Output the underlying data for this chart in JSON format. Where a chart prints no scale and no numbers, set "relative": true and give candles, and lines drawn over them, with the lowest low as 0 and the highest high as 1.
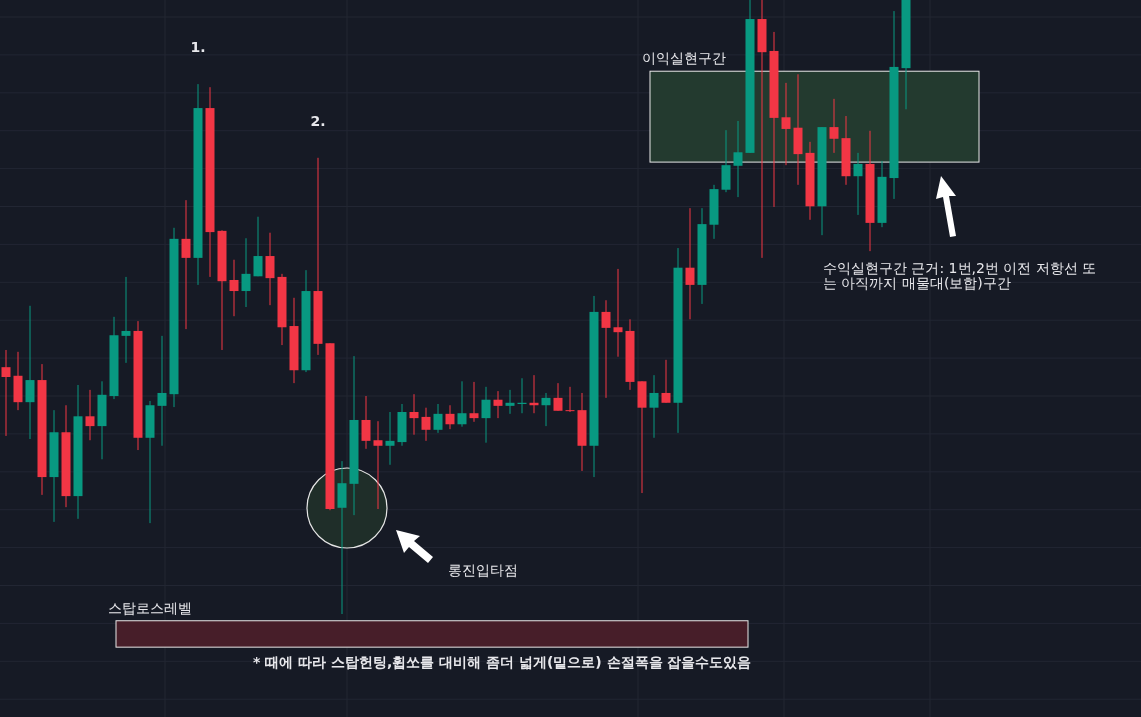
{
  "chart_data": {
    "type": "candlestick",
    "relative": true,
    "grid": true,
    "categories": [
      null,
      null,
      null,
      null,
      null,
      null,
      null,
      null,
      null,
      null,
      null,
      null,
      null,
      null,
      null,
      null,
      null,
      null,
      null,
      null,
      null,
      null,
      null,
      null,
      null,
      null,
      null,
      null,
      null,
      null,
      null,
      null,
      null,
      null,
      null,
      null,
      null,
      null,
      null,
      null,
      null,
      null,
      null,
      null,
      null,
      null,
      null,
      null,
      null,
      null,
      null,
      null,
      null,
      null,
      null,
      null,
      null,
      null,
      null,
      null,
      null,
      null,
      null,
      null,
      null,
      null,
      null,
      null,
      null,
      null,
      null,
      null,
      null,
      null,
      null,
      null
    ],
    "ohlc": [
      [
        0.402,
        0.43,
        0.29,
        0.386
      ],
      [
        0.388,
        0.427,
        0.332,
        0.345
      ],
      [
        0.345,
        0.502,
        0.285,
        0.381
      ],
      [
        0.381,
        0.407,
        0.194,
        0.223
      ],
      [
        0.223,
        0.332,
        0.15,
        0.296
      ],
      [
        0.296,
        0.34,
        0.174,
        0.192
      ],
      [
        0.192,
        0.373,
        0.155,
        0.322
      ],
      [
        0.322,
        0.365,
        0.283,
        0.306
      ],
      [
        0.306,
        0.379,
        0.252,
        0.357
      ],
      [
        0.355,
        0.484,
        0.35,
        0.454
      ],
      [
        0.453,
        0.549,
        0.409,
        0.461
      ],
      [
        0.461,
        0.477,
        0.267,
        0.287
      ],
      [
        0.287,
        0.347,
        0.148,
        0.34
      ],
      [
        0.339,
        0.453,
        0.274,
        0.36
      ],
      [
        0.358,
        0.629,
        0.337,
        0.611
      ],
      [
        0.611,
        0.674,
        0.464,
        0.58
      ],
      [
        0.58,
        0.863,
        0.536,
        0.824
      ],
      [
        0.824,
        0.858,
        0.549,
        0.622
      ],
      [
        0.624,
        0.625,
        0.43,
        0.542
      ],
      [
        0.544,
        0.577,
        0.485,
        0.526
      ],
      [
        0.526,
        0.612,
        0.5,
        0.554
      ],
      [
        0.55,
        0.647,
        0.55,
        0.583
      ],
      [
        0.583,
        0.621,
        0.503,
        0.547
      ],
      [
        0.549,
        0.554,
        0.438,
        0.467
      ],
      [
        0.469,
        0.515,
        0.376,
        0.397
      ],
      [
        0.397,
        0.56,
        0.394,
        0.526
      ],
      [
        0.526,
        0.743,
        0.422,
        0.44
      ],
      [
        0.441,
        0.441,
        0.169,
        0.171
      ],
      [
        0.173,
        0.249,
        0.0,
        0.213
      ],
      [
        0.212,
        0.42,
        0.161,
        0.316
      ],
      [
        0.316,
        0.355,
        0.269,
        0.282
      ],
      [
        0.283,
        0.314,
        0.171,
        0.274
      ],
      [
        0.274,
        0.329,
        0.243,
        0.282
      ],
      [
        0.28,
        0.342,
        0.274,
        0.329
      ],
      [
        0.329,
        0.358,
        0.292,
        0.319
      ],
      [
        0.321,
        0.336,
        0.282,
        0.3
      ],
      [
        0.3,
        0.342,
        0.295,
        0.326
      ],
      [
        0.326,
        0.34,
        0.301,
        0.309
      ],
      [
        0.309,
        0.379,
        0.305,
        0.327
      ],
      [
        0.327,
        0.378,
        0.313,
        0.319
      ],
      [
        0.319,
        0.37,
        0.279,
        0.349
      ],
      [
        0.349,
        0.363,
        0.319,
        0.339
      ],
      [
        0.339,
        0.365,
        0.326,
        0.344
      ],
      [
        0.342,
        0.384,
        0.327,
        0.344
      ],
      [
        0.344,
        0.389,
        0.327,
        0.34
      ],
      [
        0.34,
        0.36,
        0.306,
        0.352
      ],
      [
        0.352,
        0.376,
        0.331,
        0.331
      ],
      [
        0.332,
        0.37,
        0.329,
        0.331
      ],
      [
        0.332,
        0.36,
        0.233,
        0.274
      ],
      [
        0.274,
        0.518,
        0.223,
        0.492
      ],
      [
        0.492,
        0.511,
        0.352,
        0.466
      ],
      [
        0.467,
        0.562,
        0.419,
        0.459
      ],
      [
        0.461,
        0.48,
        0.365,
        0.378
      ],
      [
        0.379,
        0.379,
        0.197,
        0.336
      ],
      [
        0.336,
        0.389,
        0.287,
        0.36
      ],
      [
        0.36,
        0.414,
        0.344,
        0.344
      ],
      [
        0.344,
        0.596,
        0.295,
        0.564
      ],
      [
        0.564,
        0.661,
        0.48,
        0.536
      ],
      [
        0.536,
        0.661,
        0.505,
        0.635
      ],
      [
        0.634,
        0.699,
        0.611,
        0.692
      ],
      [
        0.691,
        0.788,
        0.687,
        0.731
      ],
      [
        0.73,
        0.803,
        0.679,
        0.752
      ],
      [
        0.751,
        1.0,
        0.751,
        0.969
      ],
      [
        0.969,
        1.0,
        0.58,
        0.915
      ],
      [
        0.917,
        0.948,
        0.663,
        0.808
      ],
      [
        0.809,
        0.865,
        0.731,
        0.79
      ],
      [
        0.792,
        0.879,
        0.699,
        0.749
      ],
      [
        0.751,
        0.769,
        0.642,
        0.664
      ],
      [
        0.664,
        0.793,
        0.617,
        0.793
      ],
      [
        0.793,
        0.839,
        0.751,
        0.774
      ],
      [
        0.775,
        0.811,
        0.699,
        0.713
      ],
      [
        0.713,
        0.751,
        0.65,
        0.733
      ],
      [
        0.733,
        0.787,
        0.591,
        0.637
      ],
      [
        0.637,
        0.738,
        0.63,
        0.712
      ],
      [
        0.71,
        0.982,
        0.676,
        0.891
      ],
      [
        0.889,
        1.0,
        0.822,
        1.0
      ]
    ],
    "bands": [
      {
        "axis": "y",
        "from": 0.736,
        "to": 0.884,
        "label": "이익실현구간",
        "color": "#233a2f"
      },
      {
        "axis": "y",
        "from": -0.054,
        "to": -0.011,
        "label": "스탑로스레벨",
        "color": "#471e29"
      }
    ],
    "annotations": [
      {
        "text": "1.",
        "y": 0.863
      },
      {
        "text": "2.",
        "y": 0.743
      },
      "롱진입타점",
      "수익실현구간 근거: 1번,2번 이전 저항선 또는 아직까지 매물대(보합)구간",
      "* 때에 따라 스탑헌팅,휩쏘를 대비해 좀더 넓게(밑으로) 손절폭을 잡을수도있음"
    ]
  }
}
